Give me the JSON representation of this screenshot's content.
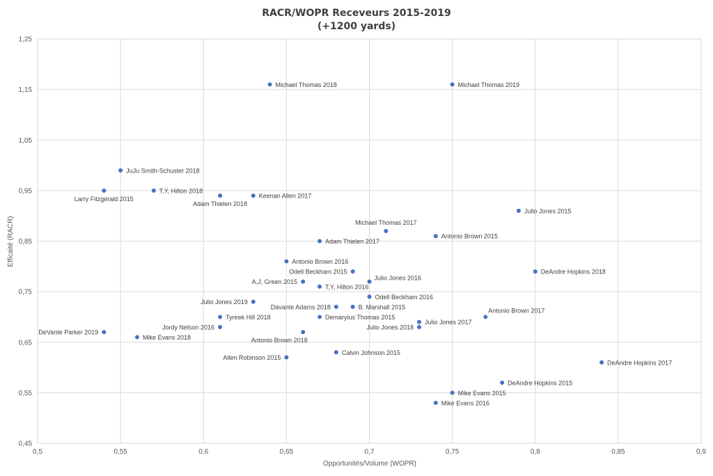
{
  "chart_data": {
    "type": "scatter",
    "title": "RACR/WOPR Receveurs 2015-2019",
    "subtitle": "(+1200 yards)",
    "xlabel": "Opportunités/Volume (WOPR)",
    "ylabel": "Efficaité (RACR)",
    "xlim": [
      0.5,
      0.9
    ],
    "ylim": [
      0.45,
      1.25
    ],
    "x_ticks": [
      "0,5",
      "0,55",
      "0,6",
      "0,65",
      "0,7",
      "0,75",
      "0,8",
      "0,85",
      "0,9"
    ],
    "y_ticks": [
      "0,45",
      "0,55",
      "0,65",
      "0,75",
      "0,85",
      "0,95",
      "1,05",
      "1,15",
      "1,25"
    ],
    "grid": true,
    "marker_color": "#4472c4",
    "points": [
      {
        "label": "Michael Thomas 2018",
        "x": 0.64,
        "y": 1.16,
        "pos": "right"
      },
      {
        "label": "Michael Thomas 2019",
        "x": 0.75,
        "y": 1.16,
        "pos": "right"
      },
      {
        "label": "JuJu Smith-Schuster 2018",
        "x": 0.55,
        "y": 0.99,
        "pos": "right"
      },
      {
        "label": "Larry Fitzgerald 2015",
        "x": 0.54,
        "y": 0.95,
        "pos": "below"
      },
      {
        "label": "T,Y, Hilton 2018",
        "x": 0.57,
        "y": 0.95,
        "pos": "right"
      },
      {
        "label": "Adam Thielen 2018",
        "x": 0.61,
        "y": 0.94,
        "pos": "below"
      },
      {
        "label": "Keenan Allen 2017",
        "x": 0.63,
        "y": 0.94,
        "pos": "right"
      },
      {
        "label": "Julio Jones 2015",
        "x": 0.79,
        "y": 0.91,
        "pos": "right"
      },
      {
        "label": "Michael Thomas 2017",
        "x": 0.71,
        "y": 0.87,
        "pos": "above"
      },
      {
        "label": "Antonio Brown 2015",
        "x": 0.74,
        "y": 0.86,
        "pos": "right"
      },
      {
        "label": "Adam Thielen 2017",
        "x": 0.67,
        "y": 0.85,
        "pos": "right"
      },
      {
        "label": "Antonio Brown 2016",
        "x": 0.65,
        "y": 0.81,
        "pos": "right"
      },
      {
        "label": "Odell Beckham 2015",
        "x": 0.69,
        "y": 0.79,
        "pos": "left"
      },
      {
        "label": "DeAndre Hopkins 2018",
        "x": 0.8,
        "y": 0.79,
        "pos": "right"
      },
      {
        "label": "A,J, Green 2015",
        "x": 0.66,
        "y": 0.77,
        "pos": "left"
      },
      {
        "label": "Julio Jones 2016",
        "x": 0.7,
        "y": 0.77,
        "pos": "right-up"
      },
      {
        "label": "T,Y, Hilton 2016",
        "x": 0.67,
        "y": 0.76,
        "pos": "right"
      },
      {
        "label": "Odell Beckham 2016",
        "x": 0.7,
        "y": 0.74,
        "pos": "right"
      },
      {
        "label": "Julio Jones 2019",
        "x": 0.63,
        "y": 0.73,
        "pos": "left"
      },
      {
        "label": "Davante Adams 2018",
        "x": 0.68,
        "y": 0.72,
        "pos": "left"
      },
      {
        "label": "B. Marshall 2015",
        "x": 0.69,
        "y": 0.72,
        "pos": "right"
      },
      {
        "label": "Tyreek Hill 2018",
        "x": 0.61,
        "y": 0.7,
        "pos": "right"
      },
      {
        "label": "Demaryius Thomas 2015",
        "x": 0.67,
        "y": 0.7,
        "pos": "right"
      },
      {
        "label": "Antonio Brown 2017",
        "x": 0.77,
        "y": 0.7,
        "pos": "above-right"
      },
      {
        "label": "Julio Jones 2017",
        "x": 0.73,
        "y": 0.69,
        "pos": "right"
      },
      {
        "label": "Jordy Nelson 2016",
        "x": 0.61,
        "y": 0.68,
        "pos": "left"
      },
      {
        "label": "Julio Jones 2018",
        "x": 0.73,
        "y": 0.68,
        "pos": "left"
      },
      {
        "label": "DeVante Parker 2019",
        "x": 0.54,
        "y": 0.67,
        "pos": "left"
      },
      {
        "label": "Antonio Brown 2018",
        "x": 0.66,
        "y": 0.67,
        "pos": "below-left"
      },
      {
        "label": "Mike Evans 2018",
        "x": 0.56,
        "y": 0.66,
        "pos": "right"
      },
      {
        "label": "Calvin Johnson 2015",
        "x": 0.68,
        "y": 0.63,
        "pos": "right"
      },
      {
        "label": "Allen Robinson 2015",
        "x": 0.65,
        "y": 0.62,
        "pos": "left"
      },
      {
        "label": "DeAndre Hopkins 2017",
        "x": 0.84,
        "y": 0.61,
        "pos": "right"
      },
      {
        "label": "DeAndre Hopkins 2015",
        "x": 0.78,
        "y": 0.57,
        "pos": "right"
      },
      {
        "label": "Mike Evans 2015",
        "x": 0.75,
        "y": 0.55,
        "pos": "right"
      },
      {
        "label": "Mike Evans 2016",
        "x": 0.74,
        "y": 0.53,
        "pos": "right"
      }
    ]
  }
}
